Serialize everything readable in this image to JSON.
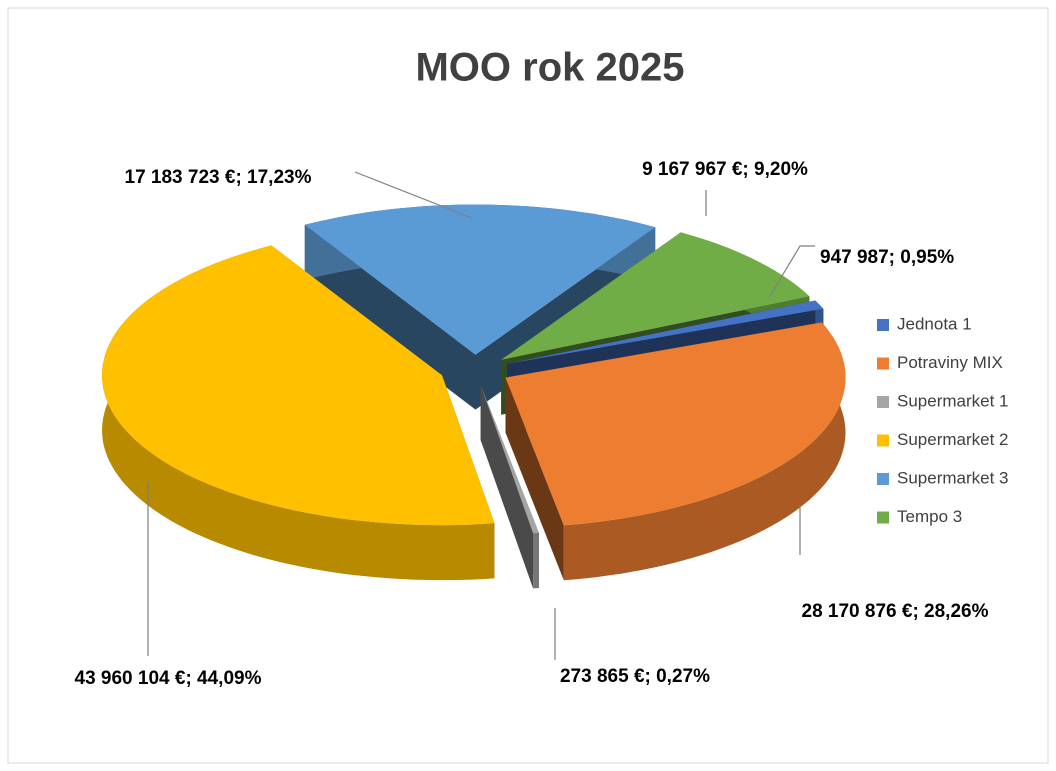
{
  "chart_data": {
    "type": "pie",
    "title": "MOO rok 2025",
    "categories": [
      "Jednota 1",
      "Potraviny MIX",
      "Supermarket 1",
      "Supermarket 2",
      "Supermarket 3",
      "Tempo 3"
    ],
    "values": [
      947987,
      28170876,
      273865,
      43960104,
      17183723,
      9167967
    ],
    "value_labels": [
      "947 987; 0,95%",
      "28 170 876 €; 28,26%",
      "273 865 €; 0,27%",
      "43 960 104 €; 44,09%",
      "17 183 723 €; 17,23%",
      "9 167 967 €; 9,20%"
    ],
    "colors": [
      "#4472c4",
      "#ed7d31",
      "#a5a5a5",
      "#ffc000",
      "#5b9bd5",
      "#70ad47"
    ],
    "legend": "right"
  }
}
